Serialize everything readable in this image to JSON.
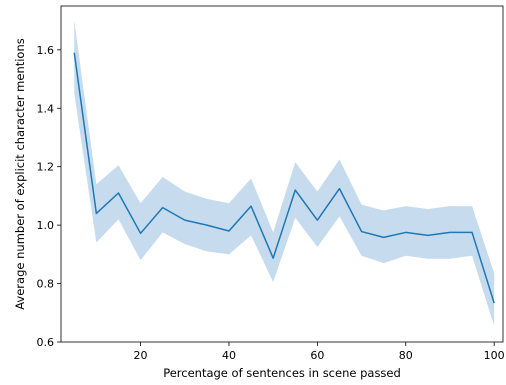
{
  "chart_data": {
    "type": "line",
    "title": "",
    "xlabel": "Percentage of sentences in scene passed",
    "ylabel": "Average number of explicit character mentions",
    "xlim": [
      2,
      102
    ],
    "ylim": [
      0.6,
      1.75
    ],
    "xticks": [
      20,
      40,
      60,
      80,
      100
    ],
    "yticks": [
      0.6,
      0.8,
      1.0,
      1.2,
      1.4,
      1.6
    ],
    "xtick_labels": [
      "20",
      "40",
      "60",
      "80",
      "100"
    ],
    "ytick_labels": [
      "0.6",
      "0.8",
      "1.0",
      "1.2",
      "1.4",
      "1.6"
    ],
    "grid": false,
    "colors": {
      "line": "#1f77b4",
      "band": "#c6dcee"
    },
    "series": [
      {
        "x": [
          5,
          10,
          15,
          20,
          25,
          30,
          35,
          40,
          45,
          50,
          55,
          60,
          65,
          70,
          75,
          80,
          85,
          90,
          95,
          100
        ],
        "values": [
          1.59,
          1.04,
          1.11,
          0.972,
          1.06,
          1.017,
          1.0,
          0.98,
          1.065,
          0.887,
          1.12,
          1.017,
          1.125,
          0.978,
          0.958,
          0.975,
          0.965,
          0.975,
          0.975,
          0.733
        ],
        "ci_lower": [
          1.45,
          0.94,
          1.02,
          0.88,
          0.975,
          0.935,
          0.91,
          0.9,
          0.965,
          0.805,
          1.025,
          0.925,
          1.03,
          0.895,
          0.87,
          0.895,
          0.885,
          0.885,
          0.895,
          0.655
        ],
        "ci_upper": [
          1.7,
          1.14,
          1.205,
          1.075,
          1.165,
          1.115,
          1.09,
          1.075,
          1.16,
          0.975,
          1.215,
          1.115,
          1.225,
          1.07,
          1.05,
          1.065,
          1.055,
          1.065,
          1.065,
          0.835
        ]
      }
    ]
  }
}
